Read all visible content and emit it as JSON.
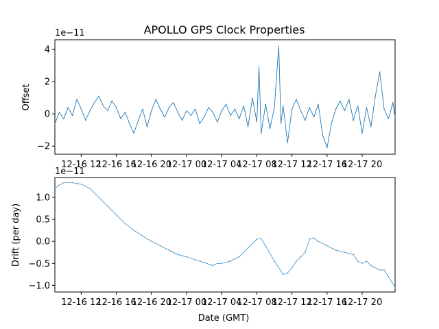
{
  "chart_data": [
    {
      "type": "line",
      "title": "APOLLO GPS Clock Properties",
      "xlabel": "",
      "ylabel": "Offset",
      "exponent_label": "1e−11",
      "x_range": [
        "2017-12-16 09:00",
        "2017-12-17 23:45"
      ],
      "ylim": [
        -2.5,
        4.6
      ],
      "y_ticks": [
        {
          "value": -2,
          "label": "−2"
        },
        {
          "value": 0,
          "label": "0"
        },
        {
          "value": 2,
          "label": "2"
        },
        {
          "value": 4,
          "label": "4"
        }
      ],
      "x_ticks": [
        {
          "value": "2017-12-16 12:00",
          "label": "12-16 12"
        },
        {
          "value": "2017-12-16 16:00",
          "label": "12-16 16"
        },
        {
          "value": "2017-12-16 20:00",
          "label": "12-16 20"
        },
        {
          "value": "2017-12-17 00:00",
          "label": "12-17 00"
        },
        {
          "value": "2017-12-17 04:00",
          "label": "12-17 04"
        },
        {
          "value": "2017-12-17 08:00",
          "label": "12-17 08"
        },
        {
          "value": "2017-12-17 12:00",
          "label": "12-17 12"
        },
        {
          "value": "2017-12-17 16:00",
          "label": "12-17 16"
        },
        {
          "value": "2017-12-17 20:00",
          "label": "12-17 20"
        }
      ],
      "grid": false,
      "series": [
        {
          "color": "#1f77b4",
          "points": [
            [
              "2017-12-16 09:00",
              -0.6
            ],
            [
              "2017-12-16 09:30",
              0.1
            ],
            [
              "2017-12-16 10:00",
              -0.3
            ],
            [
              "2017-12-16 10:30",
              0.4
            ],
            [
              "2017-12-16 11:00",
              -0.1
            ],
            [
              "2017-12-16 11:30",
              0.9
            ],
            [
              "2017-12-16 12:00",
              0.3
            ],
            [
              "2017-12-16 12:30",
              -0.4
            ],
            [
              "2017-12-16 13:00",
              0.2
            ],
            [
              "2017-12-16 13:30",
              0.7
            ],
            [
              "2017-12-16 14:00",
              1.1
            ],
            [
              "2017-12-16 14:30",
              0.5
            ],
            [
              "2017-12-16 15:00",
              0.2
            ],
            [
              "2017-12-16 15:30",
              0.8
            ],
            [
              "2017-12-16 16:00",
              0.4
            ],
            [
              "2017-12-16 16:30",
              -0.3
            ],
            [
              "2017-12-16 17:00",
              0.1
            ],
            [
              "2017-12-16 17:30",
              -0.6
            ],
            [
              "2017-12-16 18:00",
              -1.2
            ],
            [
              "2017-12-16 18:30",
              -0.4
            ],
            [
              "2017-12-16 19:00",
              0.3
            ],
            [
              "2017-12-16 19:30",
              -0.8
            ],
            [
              "2017-12-16 20:00",
              0.2
            ],
            [
              "2017-12-16 20:30",
              0.9
            ],
            [
              "2017-12-16 21:00",
              0.3
            ],
            [
              "2017-12-16 21:30",
              -0.2
            ],
            [
              "2017-12-16 22:00",
              0.4
            ],
            [
              "2017-12-16 22:30",
              0.7
            ],
            [
              "2017-12-16 23:00",
              0.1
            ],
            [
              "2017-12-16 23:30",
              -0.4
            ],
            [
              "2017-12-17 00:00",
              0.2
            ],
            [
              "2017-12-17 00:30",
              -0.1
            ],
            [
              "2017-12-17 01:00",
              0.3
            ],
            [
              "2017-12-17 01:30",
              -0.6
            ],
            [
              "2017-12-17 02:00",
              -0.2
            ],
            [
              "2017-12-17 02:30",
              0.4
            ],
            [
              "2017-12-17 03:00",
              0.1
            ],
            [
              "2017-12-17 03:30",
              -0.5
            ],
            [
              "2017-12-17 04:00",
              0.2
            ],
            [
              "2017-12-17 04:30",
              0.6
            ],
            [
              "2017-12-17 05:00",
              -0.1
            ],
            [
              "2017-12-17 05:30",
              0.3
            ],
            [
              "2017-12-17 06:00",
              -0.3
            ],
            [
              "2017-12-17 06:30",
              0.5
            ],
            [
              "2017-12-17 07:00",
              -0.8
            ],
            [
              "2017-12-17 07:30",
              1.0
            ],
            [
              "2017-12-17 08:00",
              -0.5
            ],
            [
              "2017-12-17 08:15",
              2.9
            ],
            [
              "2017-12-17 08:30",
              -1.2
            ],
            [
              "2017-12-17 09:00",
              0.6
            ],
            [
              "2017-12-17 09:30",
              -0.9
            ],
            [
              "2017-12-17 10:00",
              0.4
            ],
            [
              "2017-12-17 10:30",
              4.2
            ],
            [
              "2017-12-17 10:45",
              -0.6
            ],
            [
              "2017-12-17 11:00",
              0.5
            ],
            [
              "2017-12-17 11:30",
              -1.8
            ],
            [
              "2017-12-17 12:00",
              0.3
            ],
            [
              "2017-12-17 12:30",
              0.9
            ],
            [
              "2017-12-17 13:00",
              0.2
            ],
            [
              "2017-12-17 13:30",
              -0.4
            ],
            [
              "2017-12-17 14:00",
              0.4
            ],
            [
              "2017-12-17 14:30",
              -0.2
            ],
            [
              "2017-12-17 15:00",
              0.6
            ],
            [
              "2017-12-17 15:30",
              -1.3
            ],
            [
              "2017-12-17 16:00",
              -2.1
            ],
            [
              "2017-12-17 16:30",
              -0.6
            ],
            [
              "2017-12-17 17:00",
              0.3
            ],
            [
              "2017-12-17 17:30",
              0.8
            ],
            [
              "2017-12-17 18:00",
              0.2
            ],
            [
              "2017-12-17 18:30",
              0.9
            ],
            [
              "2017-12-17 19:00",
              -0.4
            ],
            [
              "2017-12-17 19:30",
              0.5
            ],
            [
              "2017-12-17 20:00",
              -1.2
            ],
            [
              "2017-12-17 20:30",
              0.4
            ],
            [
              "2017-12-17 21:00",
              -0.8
            ],
            [
              "2017-12-17 21:30",
              1.1
            ],
            [
              "2017-12-17 22:00",
              2.6
            ],
            [
              "2017-12-17 22:30",
              0.3
            ],
            [
              "2017-12-17 23:00",
              -0.3
            ],
            [
              "2017-12-17 23:30",
              0.7
            ],
            [
              "2017-12-17 23:45",
              -0.2
            ]
          ]
        }
      ]
    },
    {
      "type": "line",
      "title": "",
      "xlabel": "Date (GMT)",
      "ylabel": "Drift (per day)",
      "exponent_label": "1e−11",
      "x_range": [
        "2017-12-16 09:00",
        "2017-12-17 23:45"
      ],
      "ylim": [
        -1.15,
        1.45
      ],
      "y_ticks": [
        {
          "value": -1.0,
          "label": "−1.0"
        },
        {
          "value": -0.5,
          "label": "−0.5"
        },
        {
          "value": 0.0,
          "label": "0.0"
        },
        {
          "value": 0.5,
          "label": "0.5"
        },
        {
          "value": 1.0,
          "label": "1.0"
        }
      ],
      "x_ticks": [
        {
          "value": "2017-12-16 12:00",
          "label": "12-16 12"
        },
        {
          "value": "2017-12-16 16:00",
          "label": "12-16 16"
        },
        {
          "value": "2017-12-16 20:00",
          "label": "12-16 20"
        },
        {
          "value": "2017-12-17 00:00",
          "label": "12-17 00"
        },
        {
          "value": "2017-12-17 04:00",
          "label": "12-17 04"
        },
        {
          "value": "2017-12-17 08:00",
          "label": "12-17 08"
        },
        {
          "value": "2017-12-17 12:00",
          "label": "12-17 12"
        },
        {
          "value": "2017-12-17 16:00",
          "label": "12-17 16"
        },
        {
          "value": "2017-12-17 20:00",
          "label": "12-17 20"
        }
      ],
      "grid": false,
      "series": [
        {
          "color": "#1f77b4",
          "points": [
            [
              "2017-12-16 09:00",
              1.2
            ],
            [
              "2017-12-16 09:30",
              1.28
            ],
            [
              "2017-12-16 10:00",
              1.33
            ],
            [
              "2017-12-16 11:00",
              1.33
            ],
            [
              "2017-12-16 12:00",
              1.3
            ],
            [
              "2017-12-16 13:00",
              1.2
            ],
            [
              "2017-12-16 14:00",
              1.0
            ],
            [
              "2017-12-16 15:00",
              0.8
            ],
            [
              "2017-12-16 16:00",
              0.6
            ],
            [
              "2017-12-16 17:00",
              0.4
            ],
            [
              "2017-12-16 18:00",
              0.25
            ],
            [
              "2017-12-16 19:00",
              0.12
            ],
            [
              "2017-12-16 20:00",
              0.0
            ],
            [
              "2017-12-16 21:00",
              -0.1
            ],
            [
              "2017-12-16 22:00",
              -0.2
            ],
            [
              "2017-12-16 23:00",
              -0.3
            ],
            [
              "2017-12-17 00:00",
              -0.35
            ],
            [
              "2017-12-17 01:00",
              -0.42
            ],
            [
              "2017-12-17 02:00",
              -0.48
            ],
            [
              "2017-12-17 03:00",
              -0.55
            ],
            [
              "2017-12-17 03:30",
              -0.5
            ],
            [
              "2017-12-17 04:00",
              -0.5
            ],
            [
              "2017-12-17 05:00",
              -0.45
            ],
            [
              "2017-12-17 06:00",
              -0.35
            ],
            [
              "2017-12-17 07:00",
              -0.15
            ],
            [
              "2017-12-17 08:00",
              0.05
            ],
            [
              "2017-12-17 08:30",
              0.06
            ],
            [
              "2017-12-17 09:00",
              -0.1
            ],
            [
              "2017-12-17 10:00",
              -0.45
            ],
            [
              "2017-12-17 11:00",
              -0.75
            ],
            [
              "2017-12-17 11:30",
              -0.72
            ],
            [
              "2017-12-17 12:00",
              -0.6
            ],
            [
              "2017-12-17 12:30",
              -0.45
            ],
            [
              "2017-12-17 13:00",
              -0.35
            ],
            [
              "2017-12-17 13:30",
              -0.25
            ],
            [
              "2017-12-17 14:00",
              0.05
            ],
            [
              "2017-12-17 14:30",
              0.08
            ],
            [
              "2017-12-17 15:00",
              0.0
            ],
            [
              "2017-12-17 16:00",
              -0.1
            ],
            [
              "2017-12-17 17:00",
              -0.2
            ],
            [
              "2017-12-17 18:00",
              -0.25
            ],
            [
              "2017-12-17 19:00",
              -0.3
            ],
            [
              "2017-12-17 19:30",
              -0.45
            ],
            [
              "2017-12-17 20:00",
              -0.5
            ],
            [
              "2017-12-17 20:30",
              -0.45
            ],
            [
              "2017-12-17 21:00",
              -0.55
            ],
            [
              "2017-12-17 22:00",
              -0.65
            ],
            [
              "2017-12-17 22:30",
              -0.65
            ],
            [
              "2017-12-17 23:00",
              -0.8
            ],
            [
              "2017-12-17 23:45",
              -1.05
            ]
          ]
        }
      ]
    }
  ]
}
